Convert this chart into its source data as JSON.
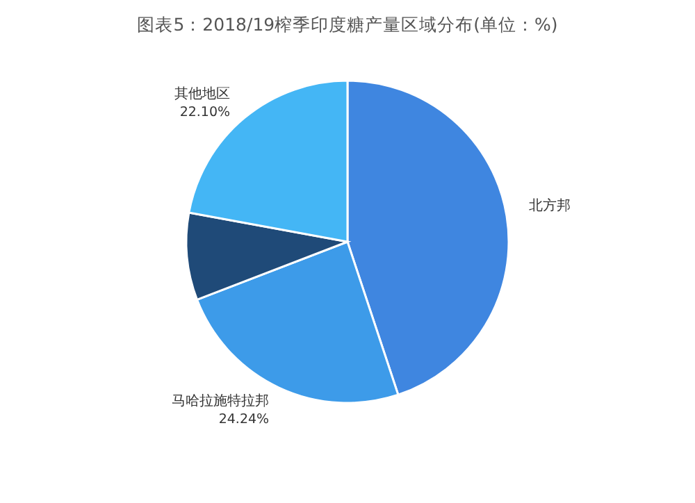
{
  "chart_data": {
    "type": "pie",
    "title": "图表5：2018/19榨季印度糖产量区域分布(单位：%)",
    "categories": [
      "北方邦",
      "马哈拉施特拉邦",
      null,
      "其他地区"
    ],
    "values": [
      44.91,
      24.24,
      8.75,
      22.1
    ],
    "colors": [
      "#3f86e0",
      "#3d9be9",
      "#1f4a78",
      "#44b6f5"
    ],
    "value_labels": [
      null,
      "24.24%",
      null,
      "22.10%"
    ]
  }
}
